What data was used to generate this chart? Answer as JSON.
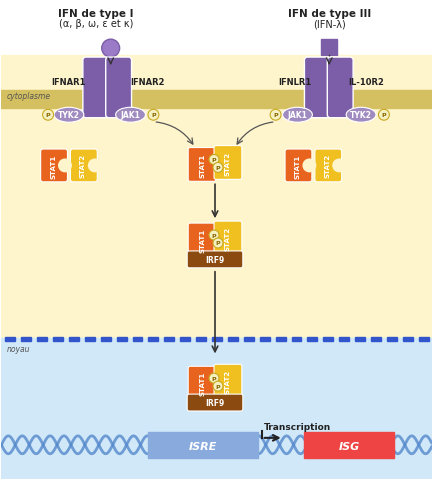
{
  "bg_cytoplasm": "#FEF5CC",
  "bg_nucleus": "#D0E8F8",
  "bg_white": "#FFFFFF",
  "purple_receptor": "#7B5EA7",
  "purple_ligand_circle": "#9B7BC7",
  "purple_ligand_square": "#7B5EA7",
  "orange_stat1": "#E8641E",
  "yellow_stat2": "#F0C020",
  "brown_irf9": "#8B4A10",
  "jak_color": "#A08BC0",
  "phospho_fill": "#F5F0C0",
  "phospho_edge": "#C8A820",
  "phospho_text": "#886600",
  "isre_color": "#88AADD",
  "isg_color": "#EE4444",
  "dna_color": "#5588CC",
  "membrane_color": "#D4C060",
  "dash_color": "#3355CC",
  "arrow_color": "#333333",
  "curve_arrow_color": "#555555",
  "title_left": "IFN de type I",
  "title_left_sub": "(α, β, ω, ε et κ)",
  "title_right": "IFN de type III",
  "title_right_sub": "(IFN-λ)",
  "label_cytoplasme": "cytoplasme",
  "label_noyau": "noyau",
  "label_ifnar1": "IFNAR1",
  "label_ifnar2": "IFNAR2",
  "label_ifnlr1": "IFNLR1",
  "label_il10r2": "IL-10R2",
  "label_jak1": "JAK1",
  "label_tyk2": "TYK2",
  "label_stat1": "STAT1",
  "label_stat2": "STAT2",
  "label_irf9": "IRF9",
  "label_isre": "ISRE",
  "label_isg": "ISG",
  "label_transcription": "Transcription",
  "label_p": "P",
  "figw": 4.33,
  "figh": 4.81,
  "dpi": 100
}
